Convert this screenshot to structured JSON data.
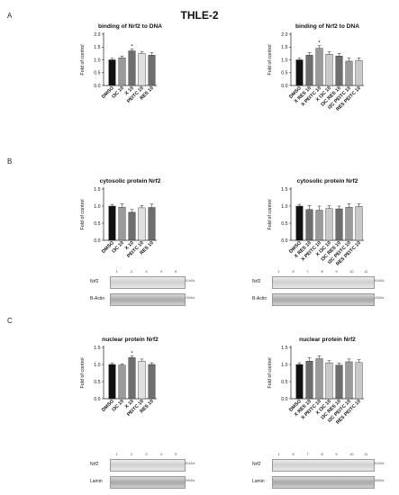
{
  "figure": {
    "title": "THLE-2",
    "panels": [
      "A",
      "B",
      "C"
    ]
  },
  "colors": {
    "black": "#111111",
    "dark_gray": "#6e6e6e",
    "mid_gray": "#9a9a9a",
    "light_gray": "#c9c9c9",
    "lighter_gray": "#e0e0e0",
    "axis": "#222222"
  },
  "chart_data": [
    {
      "id": "A1",
      "type": "bar",
      "title": "binding of Nrf2 to DNA",
      "ylabel": "Fold of control",
      "ylim": [
        0,
        2.0
      ],
      "yticks": [
        "0.0",
        "0.5",
        "1.0",
        "1.5",
        "2.0"
      ],
      "categories": [
        "DMSO",
        "I3C 10",
        "X 10",
        "PEITC 10",
        "RES 10"
      ],
      "values": [
        1.0,
        1.08,
        1.35,
        1.25,
        1.18
      ],
      "errors": [
        0.06,
        0.07,
        0.07,
        0.06,
        0.1
      ],
      "fills": [
        "black",
        "mid_gray",
        "dark_gray",
        "lighter_gray",
        "dark_gray"
      ],
      "annotations": [
        "",
        "",
        "*",
        "",
        ""
      ]
    },
    {
      "id": "A2",
      "type": "bar",
      "title": "binding of Nrf2 to DNA",
      "ylabel": "Fold of control",
      "ylim": [
        0,
        2.0
      ],
      "yticks": [
        "0.0",
        "0.5",
        "1.0",
        "1.5",
        "2.0"
      ],
      "categories": [
        "DMSO",
        "X RES 10",
        "X PEITC 10",
        "X I3C 10",
        "I3C RES 10",
        "I3C PEITC 10",
        "RES PEITC 10"
      ],
      "values": [
        1.0,
        1.18,
        1.45,
        1.22,
        1.15,
        0.95,
        0.98
      ],
      "errors": [
        0.06,
        0.1,
        0.1,
        0.09,
        0.1,
        0.12,
        0.1
      ],
      "fills": [
        "black",
        "dark_gray",
        "mid_gray",
        "light_gray",
        "dark_gray",
        "mid_gray",
        "light_gray"
      ],
      "annotations": [
        "",
        "",
        "*",
        "",
        "",
        "",
        ""
      ]
    },
    {
      "id": "B1",
      "type": "bar",
      "title": "cytosolic protein Nrf2",
      "ylabel": "Fold of control",
      "ylim": [
        0,
        1.5
      ],
      "yticks": [
        "0.0",
        "0.5",
        "1.0",
        "1.5"
      ],
      "categories": [
        "DMSO",
        "I3C 10",
        "X 10",
        "PEITC 10",
        "RES 10"
      ],
      "values": [
        1.0,
        0.97,
        0.82,
        0.95,
        0.96
      ],
      "errors": [
        0.05,
        0.1,
        0.08,
        0.07,
        0.1
      ],
      "fills": [
        "black",
        "mid_gray",
        "dark_gray",
        "lighter_gray",
        "dark_gray"
      ],
      "annotations": [
        "",
        "",
        "",
        "",
        ""
      ]
    },
    {
      "id": "B2",
      "type": "bar",
      "title": "cytosolic protein Nrf2",
      "ylabel": "Fold of control",
      "ylim": [
        0,
        1.5
      ],
      "yticks": [
        "0.0",
        "0.5",
        "1.0",
        "1.5"
      ],
      "categories": [
        "DMSO",
        "X RES 10",
        "X PEITC 10",
        "X I3C 10",
        "I3C RES 10",
        "I3C PEITC 10",
        "RES PEITC 10"
      ],
      "values": [
        1.0,
        0.9,
        0.88,
        0.93,
        0.92,
        0.97,
        0.99
      ],
      "errors": [
        0.05,
        0.12,
        0.12,
        0.08,
        0.08,
        0.1,
        0.08
      ],
      "fills": [
        "black",
        "dark_gray",
        "mid_gray",
        "light_gray",
        "dark_gray",
        "mid_gray",
        "light_gray"
      ],
      "annotations": [
        "",
        "",
        "",
        "",
        "",
        "",
        ""
      ]
    },
    {
      "id": "C1",
      "type": "bar",
      "title": "nuclear protein Nrf2",
      "ylabel": "Fold of control",
      "ylim": [
        0,
        1.5
      ],
      "yticks": [
        "0.0",
        "0.5",
        "1.0",
        "1.5"
      ],
      "categories": [
        "DMSO",
        "I3C 10",
        "X 10",
        "PEITC 10",
        "RES 10"
      ],
      "values": [
        1.0,
        0.98,
        1.2,
        1.1,
        1.0
      ],
      "errors": [
        0.04,
        0.04,
        0.05,
        0.06,
        0.05
      ],
      "fills": [
        "black",
        "mid_gray",
        "dark_gray",
        "lighter_gray",
        "dark_gray"
      ],
      "annotations": [
        "",
        "",
        "*",
        "",
        ""
      ]
    },
    {
      "id": "C2",
      "type": "bar",
      "title": "nuclear protein Nrf2",
      "ylabel": "Fold of control",
      "ylim": [
        0,
        1.5
      ],
      "yticks": [
        "0.0",
        "0.5",
        "1.0",
        "1.5"
      ],
      "categories": [
        "DMSO",
        "X RES 10",
        "X PEITC 10",
        "X I3C 10",
        "I3C RES 10",
        "I3C PEITC 10",
        "RES PEITC 10"
      ],
      "values": [
        1.0,
        1.1,
        1.17,
        1.05,
        0.98,
        1.08,
        1.06
      ],
      "errors": [
        0.05,
        0.1,
        0.08,
        0.06,
        0.06,
        0.08,
        0.08
      ],
      "fills": [
        "black",
        "dark_gray",
        "mid_gray",
        "light_gray",
        "dark_gray",
        "mid_gray",
        "light_gray"
      ],
      "annotations": [
        "",
        "",
        "",
        "",
        "",
        "",
        ""
      ]
    }
  ],
  "blots": {
    "B1": {
      "lanes": [
        "1",
        "2",
        "3",
        "4",
        "5"
      ],
      "rows": [
        {
          "label": "Nrf2",
          "kda": "61kDa"
        },
        {
          "label": "B-Actin",
          "kda": "43kDa"
        }
      ]
    },
    "B2": {
      "lanes": [
        "1",
        "6",
        "7",
        "8",
        "9",
        "10",
        "11"
      ],
      "rows": [
        {
          "label": "Nrf2",
          "kda": "61kDa"
        },
        {
          "label": "B-Actin",
          "kda": "43kDa"
        }
      ]
    },
    "C1": {
      "lanes": [
        "1",
        "2",
        "3",
        "4",
        "5"
      ],
      "rows": [
        {
          "label": "Nrf2",
          "kda": "61kDa"
        },
        {
          "label": "Lamin",
          "kda": "69kDa"
        }
      ]
    },
    "C2": {
      "lanes": [
        "1",
        "6",
        "7",
        "8",
        "9",
        "10",
        "11"
      ],
      "rows": [
        {
          "label": "Nrf2",
          "kda": "61kDa"
        },
        {
          "label": "Lamin",
          "kda": "69kDa"
        }
      ]
    }
  }
}
